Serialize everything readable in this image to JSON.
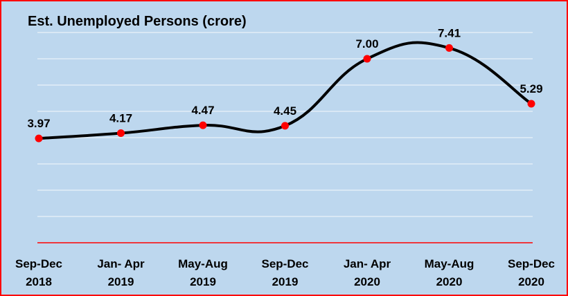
{
  "chart_data": {
    "type": "line",
    "title": "Est. Unemployed Persons (crore)",
    "categories": [
      "Sep-Dec 2018",
      "Jan- Apr 2019",
      "May-Aug 2019",
      "Sep-Dec 2019",
      "Jan- Apr 2020",
      "May-Aug 2020",
      "Sep-Dec 2020"
    ],
    "category_lines": [
      [
        "Sep-Dec",
        "2018"
      ],
      [
        "Jan- Apr",
        "2019"
      ],
      [
        "May-Aug",
        "2019"
      ],
      [
        "Sep-Dec",
        "2019"
      ],
      [
        "Jan- Apr",
        "2020"
      ],
      [
        "May-Aug",
        "2020"
      ],
      [
        "Sep-Dec",
        "2020"
      ]
    ],
    "values": [
      3.97,
      4.17,
      4.47,
      4.45,
      7.0,
      7.41,
      5.29
    ],
    "data_labels": [
      "3.97",
      "4.17",
      "4.47",
      "4.45",
      "7.00",
      "7.41",
      "5.29"
    ],
    "ylim": [
      0,
      8.5
    ],
    "grid": true,
    "legend": "none",
    "smooth": true
  },
  "colors": {
    "background": "#bdd7ee",
    "border": "#ff0000",
    "line": "#000000",
    "marker": "#ff0000",
    "gridline": "#ffffff",
    "baseline": "#ff0000"
  }
}
